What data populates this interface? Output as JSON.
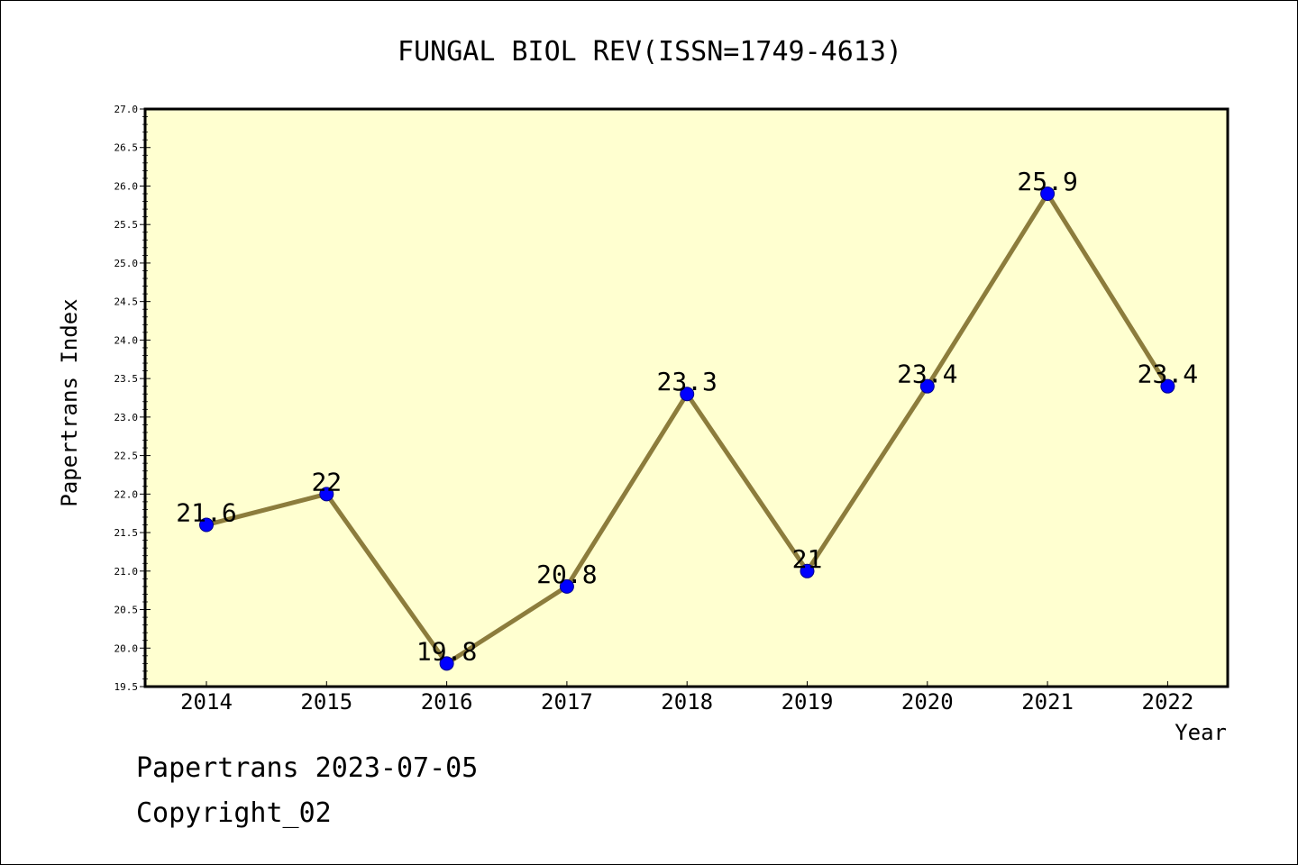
{
  "chart_data": {
    "type": "line",
    "title": "FUNGAL BIOL REV(ISSN=1749-4613)",
    "xlabel": "Year",
    "ylabel": "Papertrans Index",
    "categories": [
      "2014",
      "2015",
      "2016",
      "2017",
      "2018",
      "2019",
      "2020",
      "2021",
      "2022"
    ],
    "values": [
      21.6,
      22,
      19.8,
      20.8,
      23.3,
      21,
      23.4,
      25.9,
      23.4
    ],
    "data_labels": [
      "21.6",
      "22",
      "19.8",
      "20.8",
      "23.3",
      "21",
      "23.4",
      "25.9",
      "23.4"
    ],
    "ylim": [
      19.5,
      27.0
    ],
    "yticks": [
      "19.5",
      "20.0",
      "20.5",
      "21.0",
      "21.5",
      "22.0",
      "22.5",
      "23.0",
      "23.5",
      "24.0",
      "24.5",
      "25.0",
      "25.5",
      "26.0",
      "26.5",
      "27.0"
    ],
    "grid": false,
    "legend": "none",
    "colors": {
      "plot_background": "#ffffd0",
      "line": "#8c7c3c",
      "marker": "#0000ff",
      "frame": "#000000"
    }
  },
  "footer": {
    "line1": "Papertrans 2023-07-05",
    "line2": "Copyright_02"
  }
}
